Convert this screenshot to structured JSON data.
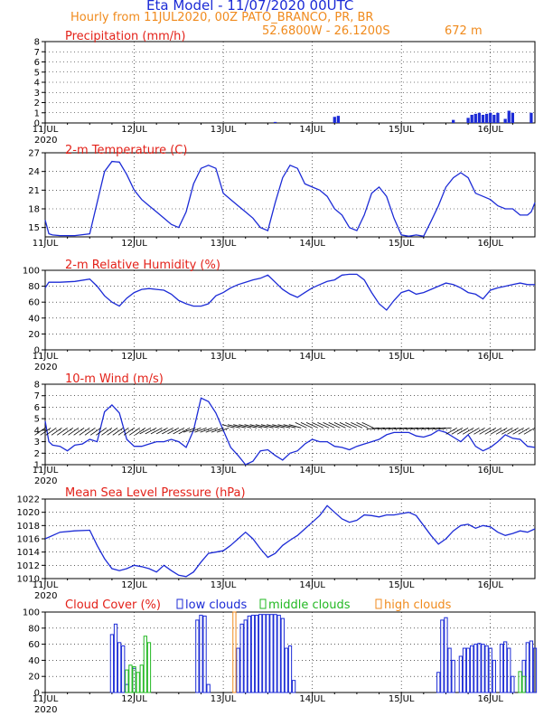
{
  "header": {
    "title": "Eta Model - 11/07/2020 00UTC",
    "subtitle": "Hourly from 11JUL2020, 00Z  PATO_BRANCO, PR, BR",
    "coords": "52.6800W - 26.1200S",
    "elevation": "672  m"
  },
  "colors": {
    "series": "#1c2bd6",
    "title": "#e32119",
    "header": "#f08a1c",
    "low": "#1c2bd6",
    "mid": "#22b822",
    "high": "#f08a1c"
  },
  "chart_data": [
    {
      "type": "bar",
      "title": "Precipitation (mm/h)",
      "ylim": [
        0,
        8
      ],
      "yticks": [
        0,
        1,
        2,
        3,
        4,
        5,
        6,
        7,
        8
      ],
      "x_range_hours": [
        0,
        132
      ],
      "x_ticks": [
        "11JUL",
        "12JUL",
        "13JUL",
        "14JUL",
        "15JUL",
        "16JUL"
      ],
      "x_year": "2020",
      "bars": [
        [
          62,
          0.1
        ],
        [
          78,
          0.6
        ],
        [
          79,
          0.7
        ],
        [
          110,
          0.3
        ],
        [
          114,
          0.5
        ],
        [
          115,
          0.8
        ],
        [
          116,
          0.9
        ],
        [
          117,
          1.0
        ],
        [
          118,
          0.8
        ],
        [
          119,
          0.9
        ],
        [
          120,
          1.0
        ],
        [
          121,
          0.8
        ],
        [
          122,
          1.0
        ],
        [
          124,
          0.4
        ],
        [
          125,
          1.2
        ],
        [
          126,
          1.0
        ],
        [
          131,
          1.0
        ]
      ]
    },
    {
      "type": "line",
      "title": "2-m Temperature (C)",
      "ylim": [
        13.5,
        27
      ],
      "yticks": [
        15,
        18,
        21,
        24,
        27
      ],
      "x_range_hours": [
        0,
        132
      ],
      "x_ticks": [
        "11JUL",
        "12JUL",
        "13JUL",
        "14JUL",
        "15JUL",
        "16JUL"
      ],
      "x_year": "2020",
      "x": [
        0,
        1,
        2,
        4,
        8,
        12,
        14,
        16,
        18,
        20,
        22,
        24,
        26,
        28,
        30,
        32,
        34,
        36,
        38,
        40,
        42,
        44,
        46,
        48,
        50,
        52,
        54,
        56,
        58,
        60,
        62,
        64,
        66,
        68,
        70,
        72,
        74,
        76,
        78,
        80,
        82,
        84,
        86,
        88,
        90,
        92,
        94,
        96,
        98,
        100,
        102,
        104,
        106,
        108,
        110,
        112,
        114,
        116,
        118,
        120,
        122,
        124,
        126,
        128,
        130,
        131,
        132
      ],
      "values": [
        16.2,
        14.0,
        13.8,
        13.7,
        13.7,
        14.0,
        19.0,
        24.0,
        25.6,
        25.5,
        23.5,
        21.0,
        19.5,
        18.5,
        17.5,
        16.5,
        15.5,
        15.0,
        17.5,
        22.0,
        24.5,
        25.0,
        24.5,
        20.5,
        19.5,
        18.5,
        17.5,
        16.5,
        15.0,
        14.5,
        19.0,
        23.0,
        25.0,
        24.5,
        22.0,
        21.5,
        21.0,
        20.0,
        18.0,
        17.0,
        15.0,
        14.5,
        17.0,
        20.5,
        21.5,
        20.0,
        16.5,
        13.8,
        13.6,
        13.8,
        13.6,
        16.0,
        18.5,
        21.5,
        23.0,
        23.8,
        23.0,
        20.5,
        20.0,
        19.5,
        18.5,
        18.0,
        18.0,
        17.0,
        17.0,
        17.5,
        19.0
      ]
    },
    {
      "type": "line",
      "title": "2-m Relative Humidity (%)",
      "ylim": [
        0,
        100
      ],
      "yticks": [
        0,
        20,
        40,
        60,
        80,
        100
      ],
      "x_range_hours": [
        0,
        132
      ],
      "x_ticks": [
        "11JUL",
        "12JUL",
        "13JUL",
        "14JUL",
        "15JUL",
        "16JUL"
      ],
      "x_year": "2020",
      "x": [
        0,
        1,
        4,
        8,
        12,
        14,
        16,
        18,
        20,
        22,
        24,
        26,
        28,
        30,
        32,
        34,
        36,
        38,
        40,
        42,
        44,
        46,
        48,
        50,
        52,
        54,
        56,
        58,
        60,
        62,
        64,
        66,
        68,
        70,
        72,
        74,
        76,
        78,
        80,
        82,
        84,
        86,
        88,
        90,
        92,
        94,
        96,
        98,
        100,
        102,
        104,
        106,
        108,
        110,
        112,
        114,
        116,
        118,
        120,
        122,
        124,
        126,
        128,
        130,
        132
      ],
      "values": [
        78,
        85,
        85,
        86,
        89,
        80,
        68,
        60,
        55,
        65,
        72,
        76,
        77,
        76,
        75,
        70,
        62,
        58,
        55,
        55,
        58,
        68,
        72,
        78,
        82,
        85,
        88,
        90,
        94,
        85,
        76,
        70,
        66,
        72,
        78,
        82,
        86,
        88,
        94,
        95,
        95,
        88,
        72,
        58,
        50,
        62,
        72,
        75,
        70,
        72,
        76,
        80,
        84,
        82,
        78,
        72,
        70,
        64,
        75,
        78,
        80,
        82,
        84,
        82,
        82
      ]
    },
    {
      "type": "line",
      "title": "10-m Wind (m/s)",
      "ylim": [
        1,
        8
      ],
      "yticks": [
        1,
        2,
        3,
        4,
        5,
        6,
        7,
        8
      ],
      "x_range_hours": [
        0,
        132
      ],
      "x_ticks": [
        "11JUL",
        "12JUL",
        "13JUL",
        "14JUL",
        "15JUL",
        "16JUL"
      ],
      "x_year": "2020",
      "x": [
        0,
        1,
        2,
        4,
        6,
        8,
        10,
        12,
        14,
        16,
        18,
        20,
        22,
        24,
        26,
        28,
        30,
        32,
        34,
        36,
        38,
        40,
        42,
        44,
        46,
        48,
        50,
        52,
        54,
        56,
        58,
        60,
        62,
        64,
        66,
        68,
        70,
        72,
        74,
        76,
        78,
        80,
        82,
        84,
        86,
        88,
        90,
        92,
        94,
        96,
        98,
        100,
        102,
        104,
        106,
        108,
        110,
        112,
        114,
        116,
        118,
        120,
        122,
        124,
        126,
        128,
        130,
        132
      ],
      "values": [
        4.8,
        3.0,
        2.7,
        2.6,
        2.2,
        2.7,
        2.8,
        3.2,
        3.0,
        5.6,
        6.2,
        5.5,
        3.2,
        2.6,
        2.6,
        2.8,
        3.0,
        3.0,
        3.2,
        3.0,
        2.5,
        4.0,
        6.8,
        6.5,
        5.5,
        4.0,
        2.5,
        1.8,
        1.0,
        1.3,
        2.2,
        2.3,
        1.8,
        1.4,
        2.0,
        2.2,
        2.8,
        3.2,
        3.0,
        3.0,
        2.6,
        2.5,
        2.3,
        2.6,
        2.8,
        3.0,
        3.2,
        3.6,
        3.8,
        3.8,
        3.8,
        3.5,
        3.4,
        3.6,
        4.0,
        3.8,
        3.4,
        3.0,
        3.6,
        2.6,
        2.2,
        2.5,
        3.0,
        3.6,
        3.3,
        3.2,
        2.6,
        2.5
      ],
      "barbs_note": "wind direction arrows along ~4.2 m/s"
    },
    {
      "type": "line",
      "title": "Mean Sea Level Pressure (hPa)",
      "ylim": [
        1010,
        1022
      ],
      "yticks": [
        1010,
        1012,
        1014,
        1016,
        1018,
        1020,
        1022
      ],
      "x_range_hours": [
        0,
        132
      ],
      "x_ticks": [
        "11JUL",
        "12JUL",
        "13JUL",
        "14JUL",
        "15JUL",
        "16JUL"
      ],
      "x_year": "2020",
      "x": [
        0,
        4,
        8,
        12,
        14,
        16,
        18,
        20,
        22,
        24,
        26,
        28,
        30,
        32,
        34,
        36,
        38,
        40,
        42,
        44,
        46,
        48,
        50,
        52,
        54,
        56,
        58,
        60,
        62,
        64,
        66,
        68,
        70,
        72,
        74,
        76,
        78,
        80,
        82,
        84,
        86,
        88,
        90,
        92,
        94,
        96,
        98,
        100,
        102,
        104,
        106,
        108,
        110,
        112,
        114,
        116,
        118,
        120,
        122,
        124,
        126,
        128,
        130,
        132
      ],
      "values": [
        1016,
        1017,
        1017.2,
        1017.3,
        1015,
        1013,
        1011.5,
        1011.2,
        1011.5,
        1012,
        1011.8,
        1011.5,
        1011,
        1012,
        1011.2,
        1010.5,
        1010.3,
        1011,
        1012.5,
        1013.8,
        1014,
        1014.2,
        1015,
        1016,
        1017,
        1016,
        1014.5,
        1013.2,
        1013.8,
        1015,
        1015.8,
        1016.5,
        1017.5,
        1018.5,
        1019.5,
        1021,
        1020,
        1019,
        1018.5,
        1018.8,
        1019.6,
        1019.5,
        1019.3,
        1019.6,
        1019.6,
        1019.8,
        1020,
        1019.5,
        1018,
        1016.5,
        1015.2,
        1016,
        1017.2,
        1018,
        1018.2,
        1017.6,
        1018,
        1017.8,
        1017,
        1016.5,
        1016.8,
        1017.2,
        1017,
        1017.5
      ]
    },
    {
      "type": "bar",
      "title": "Cloud Cover (%)",
      "ylim": [
        0,
        100
      ],
      "yticks": [
        0,
        20,
        40,
        60,
        80,
        100
      ],
      "x_range_hours": [
        0,
        132
      ],
      "x_ticks": [
        "11JUL",
        "12JUL",
        "13JUL",
        "14JUL",
        "15JUL",
        "16JUL"
      ],
      "x_year": "2020",
      "legend": [
        "low clouds",
        "middle clouds",
        "high clouds"
      ],
      "series": [
        {
          "name": "low clouds",
          "bars": [
            [
              18,
              72
            ],
            [
              19,
              85
            ],
            [
              20,
              62
            ],
            [
              21,
              58
            ],
            [
              22,
              10
            ],
            [
              24,
              30
            ],
            [
              41,
              90
            ],
            [
              42,
              96
            ],
            [
              43,
              95
            ],
            [
              44,
              10
            ],
            [
              52,
              55
            ],
            [
              53,
              85
            ],
            [
              54,
              90
            ],
            [
              55,
              95
            ],
            [
              56,
              96
            ],
            [
              57,
              96
            ],
            [
              58,
              97
            ],
            [
              59,
              97
            ],
            [
              60,
              97
            ],
            [
              61,
              97
            ],
            [
              62,
              97
            ],
            [
              63,
              96
            ],
            [
              64,
              92
            ],
            [
              65,
              55
            ],
            [
              66,
              58
            ],
            [
              67,
              15
            ],
            [
              106,
              25
            ],
            [
              107,
              90
            ],
            [
              108,
              93
            ],
            [
              109,
              55
            ],
            [
              110,
              40
            ],
            [
              112,
              45
            ],
            [
              113,
              55
            ],
            [
              114,
              55
            ],
            [
              115,
              58
            ],
            [
              116,
              60
            ],
            [
              117,
              61
            ],
            [
              118,
              60
            ],
            [
              119,
              58
            ],
            [
              120,
              55
            ],
            [
              121,
              40
            ],
            [
              123,
              60
            ],
            [
              124,
              63
            ],
            [
              125,
              55
            ],
            [
              126,
              20
            ],
            [
              129,
              40
            ],
            [
              130,
              62
            ],
            [
              131,
              64
            ],
            [
              132,
              55
            ]
          ]
        },
        {
          "name": "middle clouds",
          "bars": [
            [
              22,
              28
            ],
            [
              23,
              34
            ],
            [
              24,
              32
            ],
            [
              25,
              25
            ],
            [
              26,
              34
            ],
            [
              27,
              70
            ],
            [
              28,
              62
            ],
            [
              128,
              26
            ],
            [
              129,
              20
            ]
          ]
        },
        {
          "name": "high clouds",
          "bars": [
            [
              51,
              100
            ]
          ]
        }
      ]
    }
  ]
}
